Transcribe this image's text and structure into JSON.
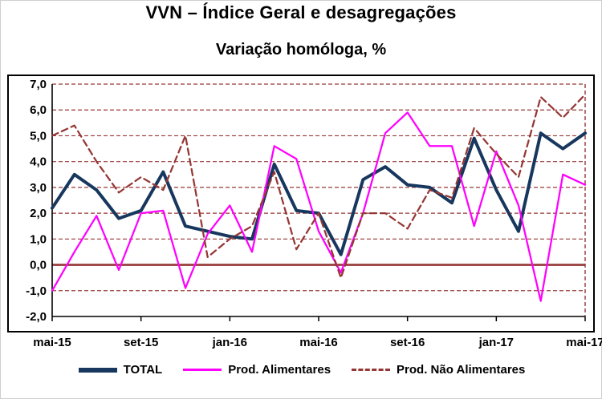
{
  "header": {
    "title": "VVN – Índice Geral e desagregações",
    "subtitle": "Variação homóloga, %"
  },
  "chart_data": {
    "type": "line",
    "x": [
      "mai-15",
      "jun-15",
      "jul-15",
      "ago-15",
      "set-15",
      "out-15",
      "nov-15",
      "dez-15",
      "jan-16",
      "fev-16",
      "mar-16",
      "abr-16",
      "mai-16",
      "jun-16",
      "jul-16",
      "ago-16",
      "set-16",
      "out-16",
      "nov-16",
      "dez-16",
      "jan-17",
      "fev-17",
      "mar-17",
      "abr-17",
      "mai-17"
    ],
    "x_tick_labels": [
      "mai-15",
      "set-15",
      "jan-16",
      "mai-16",
      "set-16",
      "jan-17",
      "mai-17"
    ],
    "x_tick_indices": [
      0,
      4,
      8,
      12,
      16,
      20,
      24
    ],
    "ylim": [
      -2,
      7
    ],
    "y_ticks": [
      {
        "v": 7,
        "label": "7,0"
      },
      {
        "v": 6,
        "label": "6,0"
      },
      {
        "v": 5,
        "label": "5,0"
      },
      {
        "v": 4,
        "label": "4,0"
      },
      {
        "v": 3,
        "label": "3,0"
      },
      {
        "v": 2,
        "label": "2,0"
      },
      {
        "v": 1,
        "label": "1,0"
      },
      {
        "v": 0,
        "label": "0,0"
      },
      {
        "v": -1,
        "label": "-1,0"
      },
      {
        "v": -2,
        "label": "-2,0"
      }
    ],
    "grid_on": true,
    "grid_color": "#953735",
    "zero_line_color": "#953735",
    "axis_color": "#000000",
    "legend_position": "bottom",
    "series": [
      {
        "name": "TOTAL",
        "color": "#17375E",
        "width": 4,
        "dash": null,
        "values": [
          2.2,
          3.5,
          2.9,
          1.8,
          2.1,
          3.6,
          1.5,
          1.3,
          1.1,
          1.0,
          3.9,
          2.1,
          2.0,
          0.4,
          3.3,
          3.8,
          3.1,
          3.0,
          2.4,
          4.9,
          2.9,
          1.3,
          5.1,
          4.5,
          5.1
        ]
      },
      {
        "name": "Prod. Alimentares",
        "color": "#FF00FF",
        "width": 2.25,
        "dash": null,
        "values": [
          -1.0,
          0.5,
          1.9,
          -0.2,
          2.0,
          2.1,
          -0.9,
          1.2,
          2.3,
          0.5,
          4.6,
          4.1,
          1.3,
          -0.3,
          2.0,
          5.1,
          5.9,
          4.6,
          4.6,
          1.5,
          4.4,
          2.3,
          -1.4,
          3.5,
          3.1
        ]
      },
      {
        "name": "Prod. Não Alimentares",
        "color": "#953735",
        "width": 2.25,
        "dash": "8 5",
        "values": [
          5.0,
          5.4,
          4.0,
          2.8,
          3.4,
          2.9,
          5.0,
          0.3,
          1.0,
          1.5,
          3.6,
          0.6,
          2.0,
          -0.5,
          2.0,
          2.0,
          1.4,
          2.9,
          2.6,
          5.3,
          4.3,
          3.4,
          6.5,
          5.7,
          6.6
        ]
      }
    ]
  }
}
